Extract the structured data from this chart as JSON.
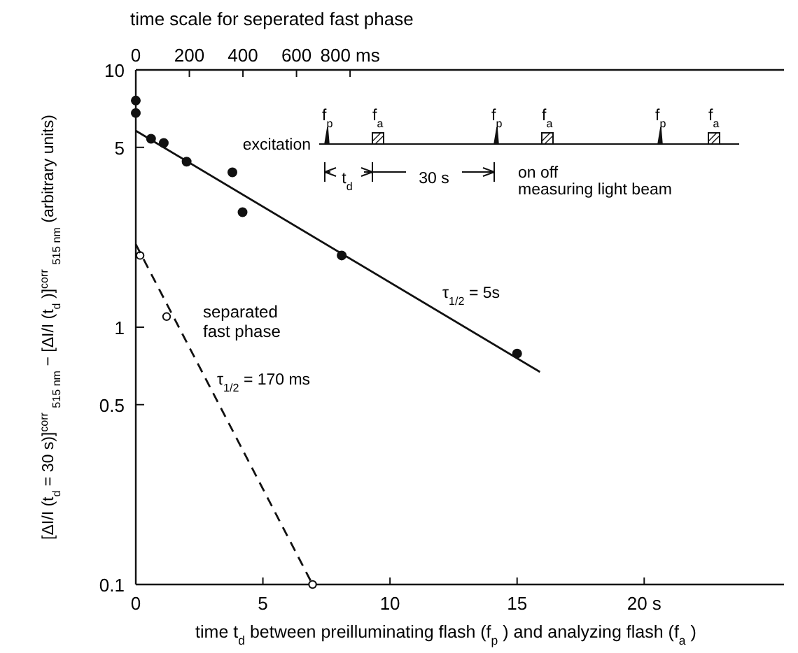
{
  "chart_data": {
    "type": "scatter",
    "xlabel": "time t$_{d}$ between preilluminating flash (f$_{p}$) and analyzing flash (f$_{a}$)",
    "x2label": "time scale for seperated fast phase",
    "ylabel": "[ΔI/I (t$_{d}$ = 30 s)]$^{corr}$$_{515 nm}$ − [ΔI/I (t$_{d}$)]$^{corr}$$_{515 nm}$  (arbitrary units)",
    "xlim": [
      0,
      25.5
    ],
    "xticks": [
      0,
      5,
      10,
      15,
      {
        "value": 20,
        "label": "20 s"
      }
    ],
    "x2lim": [
      0,
      2420
    ],
    "x2ticks": [
      0,
      200,
      400,
      600,
      {
        "value": 800,
        "label": "800 ms"
      }
    ],
    "ylim": [
      0.1,
      10
    ],
    "yticks": [
      0.1,
      0.5,
      1,
      5,
      10
    ],
    "log": "y",
    "series": [
      {
        "color": "#111111",
        "marker": "circle",
        "x": [
          0,
          0,
          0.6,
          1.1,
          2,
          3.8,
          4.2,
          8.1,
          15
        ],
        "values": [
          7.6,
          6.8,
          5.4,
          5.2,
          4.4,
          4.0,
          2.8,
          1.9,
          0.79
        ]
      },
      {
        "type": "line",
        "color": "#111111",
        "marker": "none",
        "line_style": "solid",
        "x": [
          0,
          15.9
        ],
        "values": [
          5.8,
          0.67
        ]
      },
      {
        "axis": "x2",
        "color": "#111111",
        "marker": "circle",
        "x": [
          16,
          115,
          660
        ],
        "values": [
          1.9,
          1.1,
          0.1
        ]
      },
      {
        "type": "line",
        "axis": "x2",
        "color": "#111111",
        "marker": "none",
        "line_style": "dashed",
        "x": [
          0,
          660
        ],
        "values": [
          2.1,
          0.1
        ]
      }
    ],
    "annotations": [
      "excitation",
      "f$_{p}$",
      "f$_{a}$",
      "f$_{p}$",
      "f$_{a}$",
      "f$_{p}$",
      "f$_{a}$",
      "t$_{d}$",
      "30 s",
      "on off",
      "measuring light beam",
      "separated\nfast phase",
      "τ$_{1/2}$ = 5s",
      "τ$_{1/2}$ = 170 ms"
    ]
  }
}
